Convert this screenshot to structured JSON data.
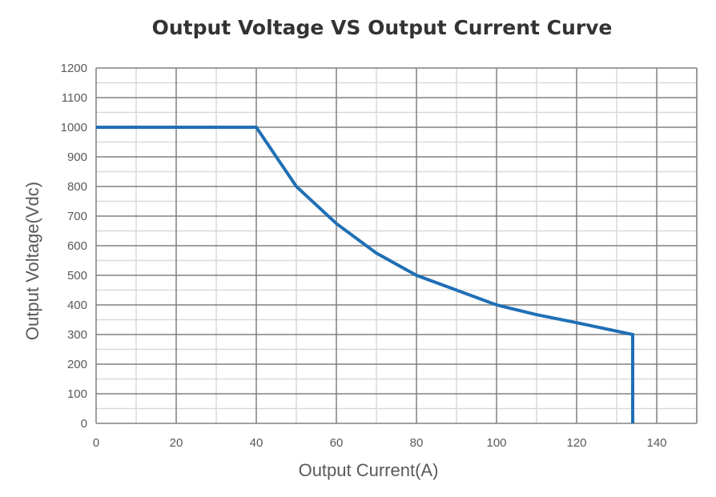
{
  "chart_data": {
    "type": "line",
    "title": "Output Voltage VS Output Current Curve",
    "xlabel": "Output Current(A)",
    "ylabel": "Output Voltage(Vdc)",
    "xlim": [
      0,
      150
    ],
    "ylim": [
      0,
      1200
    ],
    "x_ticks": [
      0,
      20,
      40,
      60,
      80,
      100,
      120,
      140
    ],
    "y_ticks": [
      0,
      100,
      200,
      300,
      400,
      500,
      600,
      700,
      800,
      900,
      1000,
      1100,
      1200
    ],
    "x_minor_step": 10,
    "y_minor_step": 50,
    "grid": true,
    "series": [
      {
        "color": "#1f6fb5",
        "points": [
          [
            0,
            1000
          ],
          [
            40,
            1000
          ],
          [
            50,
            800
          ],
          [
            60,
            675
          ],
          [
            70,
            575
          ],
          [
            80,
            500
          ],
          [
            90,
            450
          ],
          [
            100,
            400
          ],
          [
            110,
            367
          ],
          [
            120,
            340
          ],
          [
            134,
            300
          ],
          [
            134,
            0
          ]
        ]
      }
    ]
  }
}
